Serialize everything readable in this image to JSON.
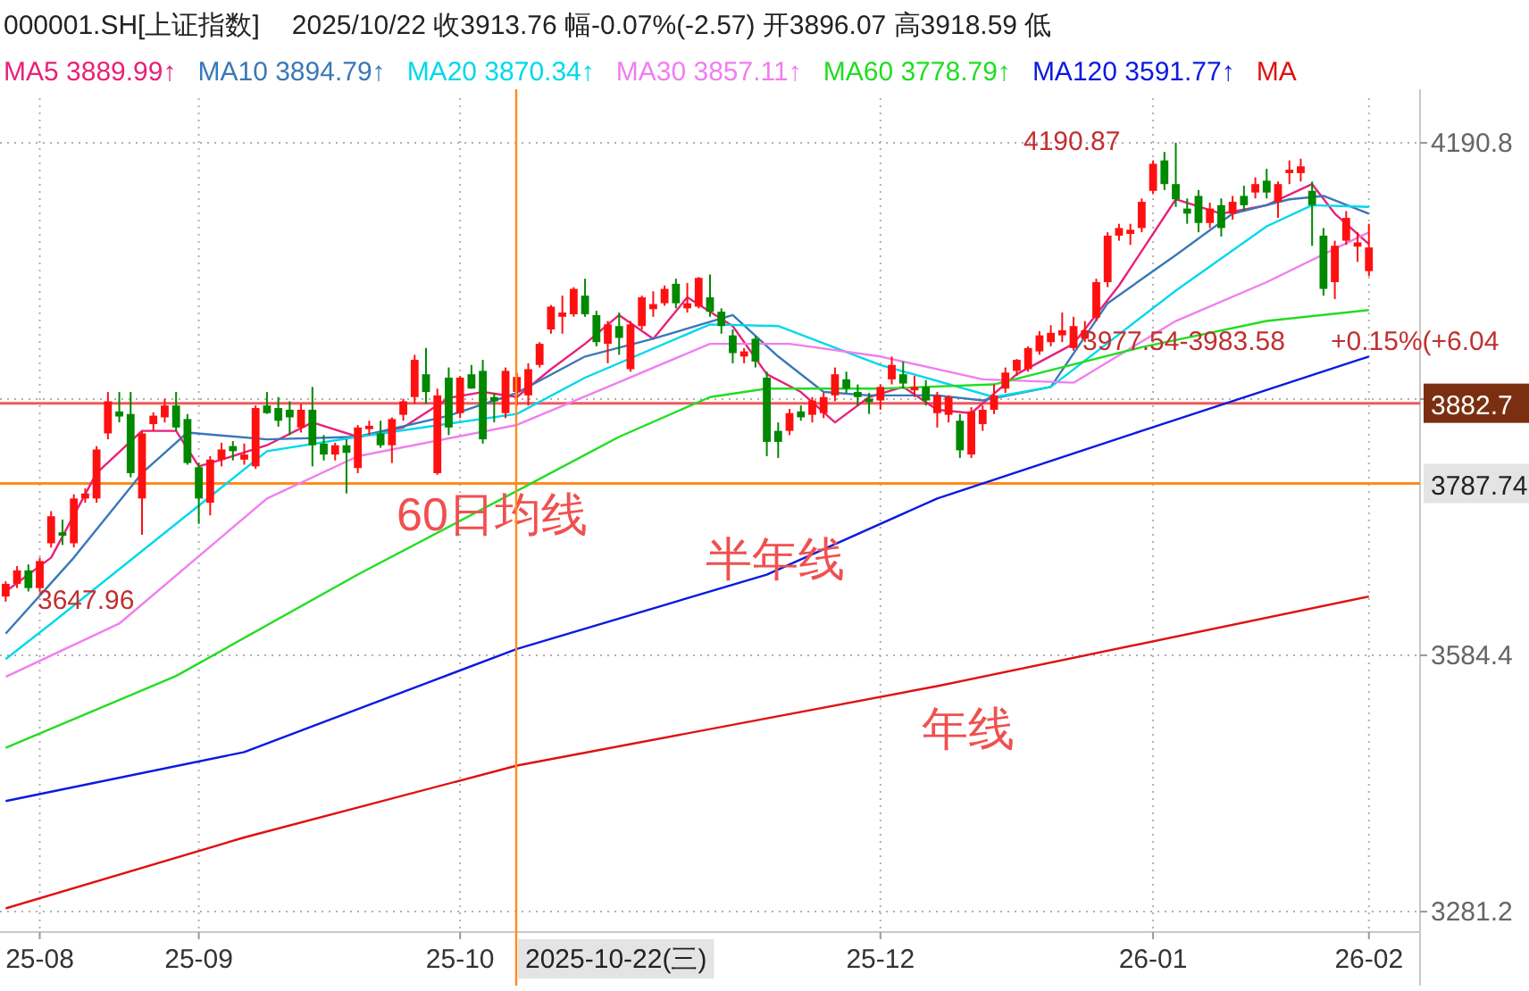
{
  "chart_data": {
    "type": "candlestick",
    "title": "000001.SH[上证指数]",
    "subtitle": "2025/10/22  收3913.76  幅-0.07%(-2.57)  开3896.07  高3918.59  低",
    "categories": [
      null,
      null,
      null,
      "25-08",
      null,
      null,
      null,
      null,
      null,
      null,
      null,
      null,
      null,
      null,
      null,
      null,
      null,
      "25-09",
      null,
      null,
      null,
      null,
      null,
      null,
      null,
      null,
      null,
      null,
      null,
      null,
      null,
      null,
      null,
      null,
      null,
      null,
      null,
      null,
      null,
      null,
      "25-10",
      null,
      null,
      null,
      null,
      null,
      null,
      null,
      null,
      null,
      null,
      null,
      null,
      null,
      null,
      null,
      null,
      null,
      null,
      null,
      null,
      null,
      null,
      null,
      null,
      null,
      null,
      null,
      null,
      null,
      null,
      null,
      null,
      null,
      null,
      null,
      null,
      "25-12",
      null,
      null,
      null,
      null,
      null,
      null,
      null,
      null,
      null,
      null,
      null,
      null,
      null,
      null,
      null,
      null,
      null,
      null,
      null,
      null,
      null,
      null,
      null,
      "26-01",
      null,
      null,
      null,
      null,
      null,
      null,
      null,
      null,
      null,
      null,
      null,
      null,
      null,
      null,
      null,
      null,
      null,
      null,
      "26-02"
    ],
    "ohlc": [
      [
        3654,
        3672,
        3647.96,
        3669
      ],
      [
        3669,
        3690,
        3664,
        3685
      ],
      [
        3685,
        3692,
        3660,
        3664
      ],
      [
        3664,
        3700,
        3660,
        3696
      ],
      [
        3717,
        3755,
        3712,
        3749
      ],
      [
        3730,
        3745,
        3715,
        3726
      ],
      [
        3717,
        3775,
        3712,
        3770
      ],
      [
        3770,
        3782,
        3765,
        3776
      ],
      [
        3770,
        3832,
        3765,
        3828
      ],
      [
        3847,
        3896,
        3840,
        3885
      ],
      [
        3873,
        3896,
        3860,
        3867
      ],
      [
        3870,
        3896,
        3795,
        3800
      ],
      [
        3770,
        3850,
        3727,
        3847
      ],
      [
        3858,
        3872,
        3850,
        3868
      ],
      [
        3866,
        3888,
        3860,
        3880
      ],
      [
        3880,
        3896,
        3850,
        3854
      ],
      [
        3864,
        3870,
        3810,
        3812
      ],
      [
        3807,
        3812,
        3740,
        3770
      ],
      [
        3765,
        3820,
        3750,
        3816
      ],
      [
        3816,
        3836,
        3808,
        3828
      ],
      [
        3832,
        3838,
        3815,
        3826
      ],
      [
        3816,
        3835,
        3810,
        3822
      ],
      [
        3808,
        3880,
        3805,
        3877
      ],
      [
        3880,
        3896,
        3870,
        3871
      ],
      [
        3877,
        3890,
        3855,
        3862
      ],
      [
        3875,
        3885,
        3845,
        3866
      ],
      [
        3854,
        3882,
        3848,
        3875
      ],
      [
        3875,
        3902,
        3808,
        3833
      ],
      [
        3835,
        3845,
        3815,
        3822
      ],
      [
        3822,
        3836,
        3815,
        3833
      ],
      [
        3833,
        3840,
        3776,
        3824
      ],
      [
        3806,
        3857,
        3800,
        3854
      ],
      [
        3852,
        3862,
        3845,
        3856
      ],
      [
        3847,
        3862,
        3830,
        3833
      ],
      [
        3833,
        3866,
        3812,
        3864
      ],
      [
        3869,
        3888,
        3862,
        3885
      ],
      [
        3890,
        3940,
        3882,
        3934
      ],
      [
        3917,
        3948,
        3882,
        3896
      ],
      [
        3800,
        3900,
        3798,
        3892
      ],
      [
        3913,
        3925,
        3845,
        3854
      ],
      [
        3871,
        3915,
        3865,
        3913
      ],
      [
        3917,
        3928,
        3900,
        3900
      ],
      [
        3921,
        3934,
        3835,
        3840
      ],
      [
        3890,
        3895,
        3860,
        3885
      ],
      [
        3871,
        3925,
        3865,
        3921
      ],
      [
        3896.07,
        3918.59,
        3880,
        3913.76
      ],
      [
        3892,
        3930,
        3880,
        3923
      ],
      [
        3928,
        3955,
        3925,
        3953
      ],
      [
        3970,
        3999,
        3965,
        3997
      ],
      [
        3985,
        4010,
        3965,
        3990
      ],
      [
        3988,
        4020,
        3985,
        4018
      ],
      [
        4010,
        4030,
        3985,
        3988
      ],
      [
        3987,
        3992,
        3950,
        3955
      ],
      [
        3953,
        3980,
        3930,
        3976
      ],
      [
        3974,
        3990,
        3940,
        3960
      ],
      [
        3923,
        3980,
        3920,
        3976
      ],
      [
        3974,
        4010,
        3970,
        4008
      ],
      [
        3994,
        4015,
        3985,
        4000
      ],
      [
        4001,
        4022,
        3998,
        4018
      ],
      [
        4024,
        4030,
        3995,
        4001
      ],
      [
        3995,
        4025,
        3990,
        4001
      ],
      [
        3997,
        4032,
        3995,
        4031
      ],
      [
        4008,
        4035,
        3985,
        3991
      ],
      [
        3991,
        3995,
        3965,
        3974
      ],
      [
        3963,
        3970,
        3930,
        3942
      ],
      [
        3938,
        3948,
        3930,
        3944
      ],
      [
        3959,
        3962,
        3925,
        3932
      ],
      [
        3913,
        3920,
        3820,
        3837
      ],
      [
        3850,
        3860,
        3818,
        3837
      ],
      [
        3850,
        3876,
        3845,
        3871
      ],
      [
        3873,
        3880,
        3862,
        3866
      ],
      [
        3869,
        3890,
        3860,
        3886
      ],
      [
        3871,
        3895,
        3865,
        3890
      ],
      [
        3892,
        3925,
        3885,
        3917
      ],
      [
        3911,
        3920,
        3895,
        3900
      ],
      [
        3896,
        3905,
        3880,
        3890
      ],
      [
        3888,
        3895,
        3870,
        3884
      ],
      [
        3886,
        3905,
        3875,
        3902
      ],
      [
        3911,
        3938,
        3905,
        3928
      ],
      [
        3917,
        3932,
        3900,
        3906
      ],
      [
        3898,
        3915,
        3890,
        3902
      ],
      [
        3902,
        3910,
        3880,
        3886
      ],
      [
        3871,
        3896,
        3854,
        3892
      ],
      [
        3869,
        3892,
        3860,
        3890
      ],
      [
        3862,
        3870,
        3818,
        3827
      ],
      [
        3822,
        3878,
        3818,
        3873
      ],
      [
        3858,
        3880,
        3850,
        3875
      ],
      [
        3875,
        3905,
        3870,
        3892
      ],
      [
        3900,
        3925,
        3895,
        3919
      ],
      [
        3921,
        3935,
        3915,
        3934
      ],
      [
        3923,
        3950,
        3920,
        3948
      ],
      [
        3944,
        3968,
        3940,
        3963
      ],
      [
        3955,
        3975,
        3950,
        3966
      ],
      [
        3963,
        3990,
        3955,
        3969
      ],
      [
        3948,
        3985,
        3945,
        3974
      ],
      [
        3959,
        3980,
        3955,
        3969
      ],
      [
        3984,
        4030,
        3980,
        4026
      ],
      [
        4026,
        4085,
        4020,
        4081
      ],
      [
        4081,
        4095,
        4075,
        4090
      ],
      [
        4083,
        4095,
        4070,
        4088
      ],
      [
        4090,
        4125,
        4085,
        4121
      ],
      [
        4134,
        4170,
        4130,
        4166
      ],
      [
        4170,
        4180,
        4135,
        4142
      ],
      [
        4142,
        4190.87,
        4115,
        4124
      ],
      [
        4113,
        4125,
        4095,
        4107
      ],
      [
        4128,
        4135,
        4085,
        4096
      ],
      [
        4096,
        4120,
        4090,
        4113
      ],
      [
        4117,
        4125,
        4080,
        4090
      ],
      [
        4107,
        4128,
        4100,
        4121
      ],
      [
        4128,
        4140,
        4110,
        4117
      ],
      [
        4132,
        4150,
        4125,
        4142
      ],
      [
        4146,
        4160,
        4125,
        4132
      ],
      [
        4121,
        4145,
        4102,
        4142
      ],
      [
        4155,
        4170,
        4142,
        4159
      ],
      [
        4155,
        4172,
        4145,
        4163
      ],
      [
        4134,
        4145,
        4069,
        4117
      ],
      [
        4081,
        4090,
        4010,
        4018
      ],
      [
        4026,
        4075,
        4006,
        4069
      ],
      [
        4075,
        4110,
        4070,
        4102
      ],
      [
        4068,
        4085,
        4050,
        4073
      ],
      [
        4039,
        4095,
        4033,
        4067
      ]
    ],
    "series": [
      {
        "type": "line",
        "name": "MA5 3889.99↑",
        "color": "#e8217a",
        "values": [
          3660,
          null,
          null,
          null,
          3700,
          null,
          null,
          null,
          3800,
          null,
          null,
          null,
          3850,
          null,
          null,
          3850,
          null,
          3808,
          null,
          3816,
          null,
          null,
          null,
          3833,
          null,
          null,
          null,
          3860,
          null,
          null,
          null,
          3843,
          null,
          null,
          null,
          3854,
          null,
          null,
          null,
          3889,
          null,
          null,
          3896,
          null,
          null,
          3890,
          null,
          null,
          3923,
          null,
          null,
          3953,
          null,
          null,
          3987,
          null,
          null,
          3959,
          null,
          null,
          4008,
          null,
          null,
          null,
          3974,
          null,
          null,
          3917,
          null,
          null,
          3896,
          null,
          null,
          3860,
          null,
          null,
          3890,
          null,
          null,
          3902,
          null,
          null,
          3875,
          null,
          null,
          3871,
          null,
          null,
          null,
          3917,
          null,
          null,
          null,
          null,
          3953,
          null,
          null,
          null,
          4022,
          null,
          null,
          null,
          null,
          4124,
          null,
          null,
          null,
          4107,
          null,
          null,
          null,
          4117,
          null,
          null,
          null,
          4142,
          null,
          4107,
          null,
          null,
          4071
        ]
      },
      {
        "type": "line",
        "name": "MA10 3894.79↑",
        "color": "#3a78b8",
        "values": [
          3610,
          null,
          null,
          null,
          null,
          null,
          3700,
          null,
          null,
          null,
          null,
          null,
          3800,
          null,
          null,
          null,
          3848,
          null,
          null,
          null,
          null,
          null,
          null,
          3840,
          null,
          null,
          null,
          null,
          null,
          null,
          null,
          3843,
          null,
          null,
          null,
          null,
          null,
          null,
          null,
          3868,
          null,
          null,
          null,
          null,
          null,
          3895,
          null,
          null,
          null,
          null,
          null,
          3938,
          null,
          null,
          null,
          null,
          null,
          3959,
          null,
          null,
          null,
          null,
          null,
          null,
          3987,
          null,
          null,
          null,
          3938,
          null,
          null,
          null,
          3896,
          null,
          null,
          null,
          3892,
          null,
          null,
          null,
          null,
          null,
          3892,
          null,
          null,
          null,
          3886,
          null,
          null,
          null,
          null,
          null,
          3902,
          null,
          null,
          null,
          null,
          4001,
          null,
          null,
          null,
          null,
          null,
          4058,
          null,
          null,
          null,
          null,
          4107,
          null,
          null,
          null,
          null,
          4124,
          null,
          null,
          4128,
          null,
          null,
          null,
          4107
        ]
      },
      {
        "type": "line",
        "name": "MA20 3870.34↑",
        "color": "#00d8ec",
        "values": [
          3580,
          null,
          null,
          null,
          3622,
          null,
          null,
          null,
          null,
          null,
          null,
          null,
          null,
          null,
          null,
          null,
          null,
          null,
          null,
          null,
          null,
          null,
          null,
          3826,
          null,
          null,
          null,
          null,
          null,
          null,
          null,
          3843,
          null,
          null,
          null,
          null,
          null,
          null,
          null,
          null,
          null,
          null,
          null,
          null,
          null,
          3870,
          null,
          null,
          null,
          null,
          null,
          3913,
          null,
          null,
          null,
          null,
          null,
          null,
          null,
          null,
          null,
          null,
          3976,
          null,
          null,
          null,
          null,
          null,
          3974,
          null,
          null,
          null,
          null,
          null,
          null,
          null,
          null,
          3928,
          null,
          null,
          null,
          null,
          null,
          null,
          null,
          null,
          null,
          3890,
          null,
          null,
          null,
          null,
          3902,
          null,
          null,
          null,
          null,
          null,
          null,
          null,
          null,
          null,
          null,
          4016,
          null,
          null,
          null,
          null,
          null,
          null,
          null,
          4092,
          null,
          null,
          null,
          4117,
          null,
          null,
          null,
          null,
          4115
        ]
      },
      {
        "type": "line",
        "name": "MA30 3857.11↑",
        "color": "#f07ef0",
        "values": [
          3559,
          null,
          null,
          null,
          null,
          null,
          null,
          null,
          null,
          null,
          3622,
          null,
          null,
          null,
          null,
          null,
          null,
          null,
          null,
          null,
          null,
          null,
          null,
          3770,
          null,
          null,
          null,
          null,
          null,
          null,
          null,
          3820,
          null,
          null,
          null,
          null,
          null,
          null,
          null,
          null,
          null,
          null,
          null,
          null,
          null,
          3857,
          null,
          null,
          null,
          null,
          null,
          null,
          null,
          3902,
          null,
          null,
          null,
          null,
          null,
          null,
          null,
          null,
          3953,
          null,
          null,
          null,
          null,
          null,
          null,
          3953,
          null,
          null,
          null,
          null,
          null,
          null,
          null,
          3938,
          null,
          null,
          null,
          null,
          null,
          null,
          null,
          null,
          3911,
          null,
          null,
          null,
          null,
          null,
          null,
          null,
          3907,
          null,
          null,
          null,
          null,
          null,
          null,
          null,
          null,
          3980,
          null,
          null,
          null,
          null,
          null,
          null,
          null,
          4026,
          null,
          null,
          null,
          null,
          null,
          null,
          null,
          null,
          4085
        ]
      },
      {
        "type": "line",
        "name": "MA60 3778.79↑",
        "color": "#22dd22",
        "values": [
          3475,
          null,
          null,
          null,
          null,
          null,
          null,
          null,
          null,
          null,
          null,
          null,
          null,
          null,
          null,
          3560,
          null,
          null,
          null,
          null,
          null,
          null,
          null,
          null,
          null,
          null,
          null,
          null,
          null,
          null,
          null,
          3680,
          null,
          null,
          null,
          null,
          null,
          null,
          null,
          null,
          null,
          null,
          null,
          null,
          null,
          3779,
          null,
          null,
          null,
          null,
          null,
          null,
          null,
          null,
          3843,
          null,
          null,
          null,
          null,
          null,
          null,
          null,
          3890,
          null,
          null,
          null,
          null,
          3900,
          null,
          null,
          null,
          null,
          null,
          null,
          null,
          null,
          null,
          3900,
          null,
          null,
          null,
          null,
          null,
          null,
          null,
          null,
          null,
          3905,
          null,
          null,
          null,
          null,
          null,
          null,
          null,
          null,
          null,
          null,
          null,
          null,
          3949,
          null,
          null,
          null,
          null,
          null,
          null,
          null,
          null,
          null,
          null,
          3980,
          null,
          null,
          null,
          null,
          null,
          null,
          null,
          null,
          3993
        ]
      },
      {
        "type": "line",
        "name": "MA120 3591.77↑",
        "color": "#0a1ae0",
        "values": [
          3412,
          null,
          null,
          null,
          null,
          null,
          null,
          null,
          null,
          null,
          null,
          null,
          null,
          null,
          null,
          null,
          null,
          null,
          null,
          null,
          null,
          3470,
          null,
          null,
          null,
          null,
          null,
          null,
          null,
          null,
          null,
          null,
          null,
          null,
          null,
          null,
          null,
          null,
          null,
          null,
          null,
          null,
          null,
          null,
          null,
          3592,
          null,
          null,
          null,
          null,
          null,
          null,
          null,
          null,
          null,
          null,
          null,
          null,
          null,
          null,
          null,
          null,
          null,
          null,
          null,
          null,
          null,
          3680,
          null,
          null,
          null,
          null,
          null,
          null,
          null,
          null,
          null,
          null,
          null,
          null,
          null,
          null,
          3770,
          null,
          null,
          null,
          null,
          null,
          null,
          null,
          null,
          null,
          null,
          null,
          null,
          null,
          null,
          null,
          null,
          null,
          3850,
          null,
          null,
          null,
          null,
          null,
          null,
          null,
          null,
          null,
          null,
          null,
          null,
          null,
          null,
          null,
          null,
          null,
          null,
          null,
          3938
        ]
      },
      {
        "type": "line",
        "name": "MA",
        "color": "#e01010",
        "values": [
          3285,
          null,
          null,
          null,
          null,
          null,
          null,
          null,
          null,
          null,
          null,
          null,
          null,
          null,
          null,
          null,
          null,
          null,
          null,
          null,
          null,
          3369,
          null,
          null,
          null,
          null,
          null,
          null,
          null,
          null,
          null,
          null,
          null,
          null,
          null,
          null,
          null,
          null,
          null,
          null,
          null,
          null,
          null,
          null,
          null,
          3454,
          null,
          null,
          null,
          null,
          null,
          null,
          null,
          null,
          null,
          null,
          null,
          null,
          null,
          null,
          null,
          null,
          null,
          null,
          null,
          null,
          null,
          null,
          null,
          null,
          null,
          null,
          null,
          null,
          null,
          null,
          null,
          null,
          null,
          null,
          null,
          null,
          3548,
          null,
          null,
          null,
          null,
          null,
          null,
          null,
          null,
          null,
          null,
          null,
          null,
          null,
          null,
          null,
          null,
          null,
          null,
          null,
          null,
          null,
          null,
          null,
          null,
          null,
          null,
          null,
          null,
          null,
          null,
          null,
          null,
          null,
          null,
          null,
          null,
          null,
          3654
        ]
      }
    ],
    "ylim": [
      3257,
      4243.6
    ],
    "yticks": [
      {
        "value": 4190.8,
        "label": "4190.8"
      },
      {
        "value": 3887.6,
        "label": null
      },
      {
        "value": 3584.4,
        "label": "3584.4"
      },
      {
        "value": 3281.2,
        "label": "3281.2"
      }
    ],
    "grid": true,
    "legend": "top",
    "ref_lines": [
      {
        "axis": "y",
        "value": 3882.7,
        "label": "3882.7",
        "color": "#f05a5a"
      },
      {
        "axis": "y",
        "value": 3787.74,
        "label": "3787.74",
        "color": "#ff8c1a"
      }
    ],
    "annotations": [
      "4190.87",
      "3647.96",
      "60日均线",
      "半年线",
      "年线",
      "3977.54-3983.58",
      "+0.15%(+6.04",
      "2025-10-22(三)"
    ]
  }
}
